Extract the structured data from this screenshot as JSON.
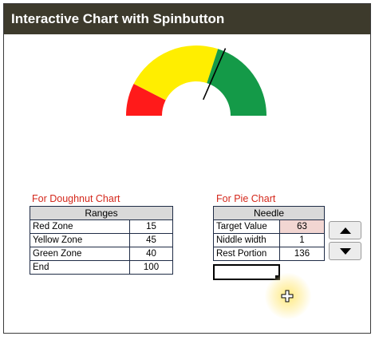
{
  "title": "Interactive Chart with Spinbutton",
  "gauge": {
    "zones": [
      {
        "name": "Red Zone",
        "value": 15,
        "color": "#ff1a1a"
      },
      {
        "name": "Yellow Zone",
        "value": 45,
        "color": "#ffee00"
      },
      {
        "name": "Green Zone",
        "value": 40,
        "color": "#149a48"
      }
    ],
    "end": 100,
    "needle_value": 63,
    "needle_color": "#000000"
  },
  "doughnut": {
    "caption": "For Doughnut Chart",
    "header": "Ranges",
    "rows": [
      {
        "label": "Red Zone",
        "value": "15"
      },
      {
        "label": "Yellow Zone",
        "value": "45"
      },
      {
        "label": "Green Zone",
        "value": "40"
      },
      {
        "label": "End",
        "value": "100"
      }
    ]
  },
  "pie": {
    "caption": "For Pie Chart",
    "header": "Needle",
    "rows": [
      {
        "label": "Target Value",
        "value": "63"
      },
      {
        "label": "Niddle width",
        "value": "1"
      },
      {
        "label": "Rest Portion",
        "value": "136"
      }
    ]
  },
  "spin": {
    "up_icon": "triangle-up-icon",
    "down_icon": "triangle-down-icon"
  },
  "accent_colors": {
    "title_bar": "#3d3a2c",
    "caption": "#d4281c",
    "highlight": "#f2d6d2"
  }
}
